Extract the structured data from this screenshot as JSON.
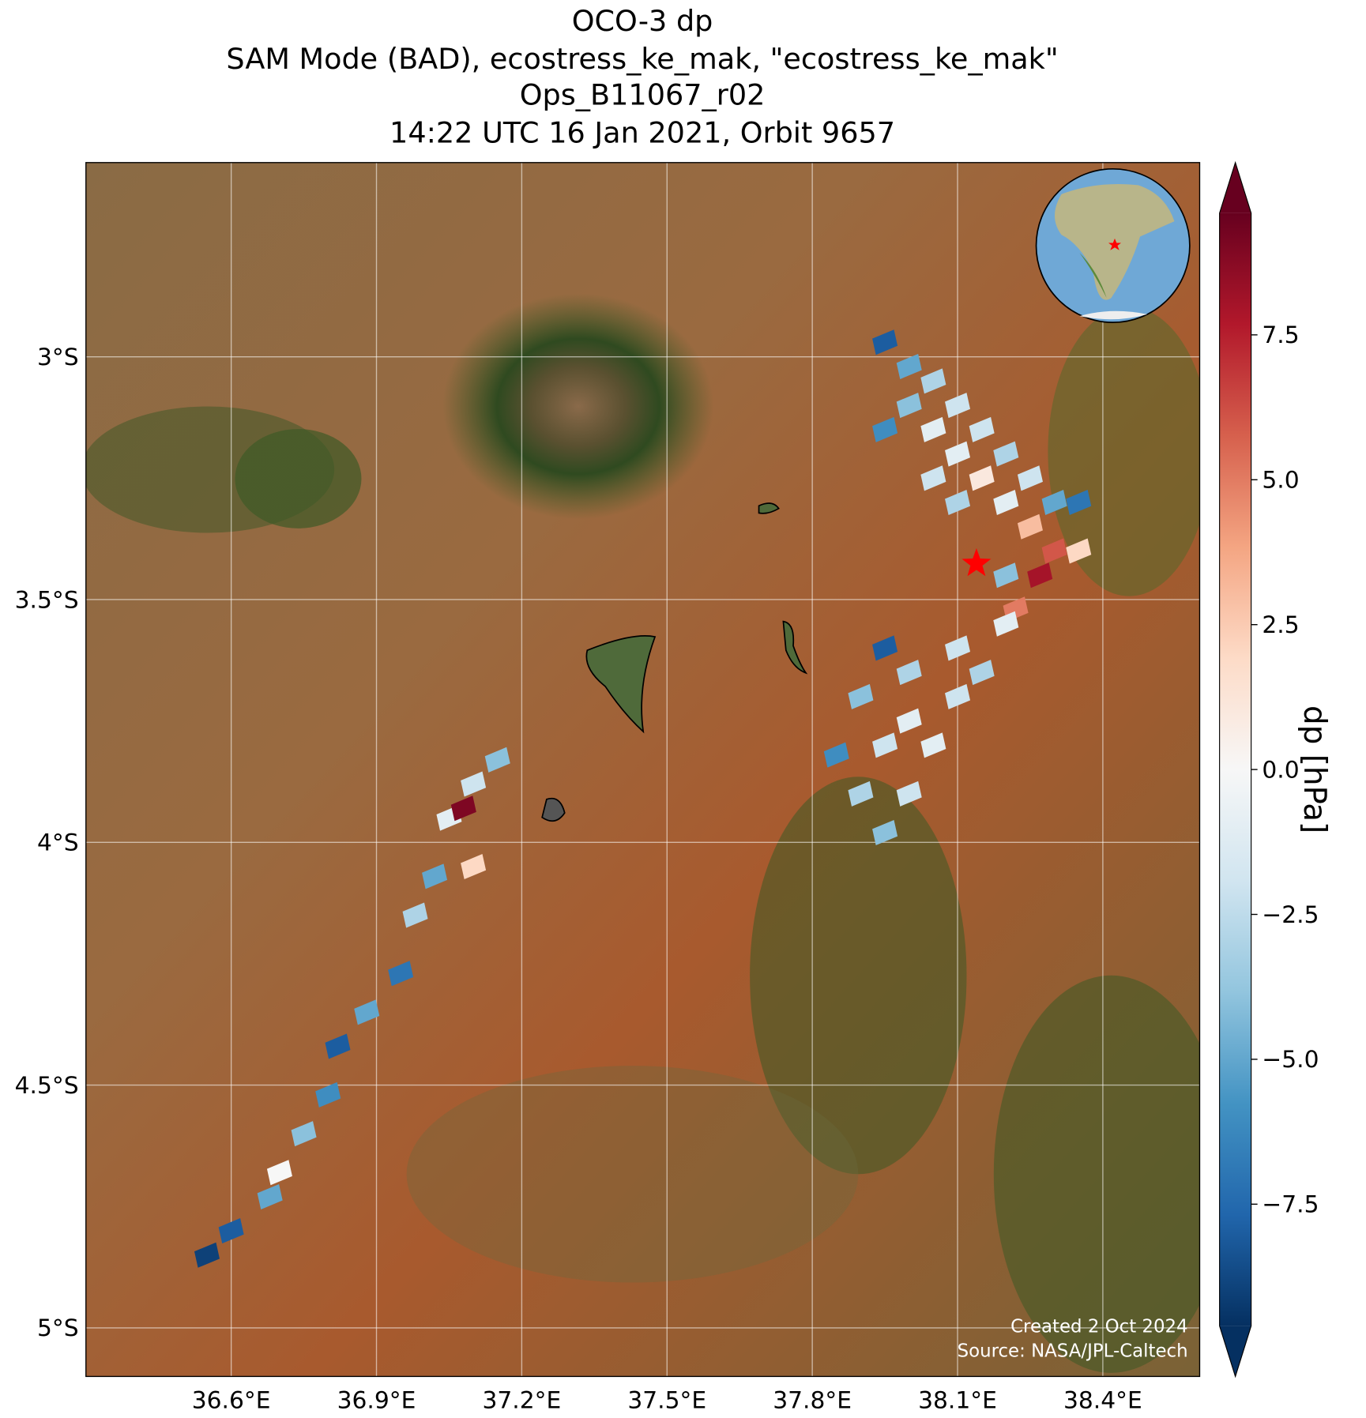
{
  "chart_data": {
    "type": "map",
    "title": [
      "OCO-3 dp",
      "SAM Mode (BAD), ecostress_ke_mak, \"ecostress_ke_mak\"",
      "Ops_B11067_r02",
      "14:22 UTC 16 Jan 2021, Orbit 9657"
    ],
    "xlim": [
      36.3,
      38.6
    ],
    "ylim": [
      -5.1,
      -2.6
    ],
    "xticks": [
      {
        "value": 36.6,
        "label": "36.6°E"
      },
      {
        "value": 36.9,
        "label": "36.9°E"
      },
      {
        "value": 37.2,
        "label": "37.2°E"
      },
      {
        "value": 37.5,
        "label": "37.5°E"
      },
      {
        "value": 37.8,
        "label": "37.8°E"
      },
      {
        "value": 38.1,
        "label": "38.1°E"
      },
      {
        "value": 38.4,
        "label": "38.4°E"
      }
    ],
    "yticks": [
      {
        "value": -3,
        "label": "3°S"
      },
      {
        "value": -3.5,
        "label": "3.5°S"
      },
      {
        "value": -4,
        "label": "4°S"
      },
      {
        "value": -4.5,
        "label": "4.5°S"
      },
      {
        "value": -5,
        "label": "5°S"
      }
    ],
    "grid": true,
    "colorbar_label": "dp [hPa]",
    "clim": [
      -9.6,
      9.6
    ],
    "cticks": [
      {
        "value": 7.5,
        "label": "7.5"
      },
      {
        "value": 5.0,
        "label": "5.0"
      },
      {
        "value": 2.5,
        "label": "2.5"
      },
      {
        "value": 0,
        "label": "0.0"
      },
      {
        "value": -2.5,
        "label": "−2.5"
      },
      {
        "value": -5.0,
        "label": "−5.0"
      },
      {
        "value": -7.5,
        "label": "−7.5"
      }
    ],
    "colormap": [
      "#053061",
      "#2166ac",
      "#4393c3",
      "#92c5de",
      "#d1e5f0",
      "#f7f7f7",
      "#fddbc7",
      "#f4a582",
      "#d6604d",
      "#b2182b",
      "#67001f"
    ],
    "target": {
      "lon": 38.139,
      "lat": -3.426,
      "color": "#ff0000"
    },
    "soundings": {
      "lon": [
        37.95,
        38.0,
        38.05,
        38.1,
        38.0,
        38.05,
        38.15,
        38.1,
        38.2,
        38.15,
        38.25,
        38.2,
        38.3,
        38.25,
        38.35,
        38.3,
        38.35,
        38.1,
        38.05,
        37.95,
        38.2,
        38.27,
        38.22,
        37.95,
        38.0,
        38.1,
        38.2,
        37.9,
        38.0,
        38.1,
        38.15,
        37.95,
        38.05,
        37.9,
        38.0,
        37.95,
        37.85,
        37.15,
        37.1,
        37.05,
        37.08,
        37.1,
        37.02,
        36.98,
        36.95,
        36.88,
        36.82,
        36.8,
        36.75,
        36.7,
        36.68,
        36.6,
        36.55
      ],
      "lat": [
        -2.97,
        -3.02,
        -3.05,
        -3.1,
        -3.1,
        -3.15,
        -3.15,
        -3.2,
        -3.2,
        -3.25,
        -3.25,
        -3.3,
        -3.3,
        -3.35,
        -3.3,
        -3.4,
        -3.4,
        -3.3,
        -3.25,
        -3.15,
        -3.45,
        -3.45,
        -3.52,
        -3.6,
        -3.65,
        -3.6,
        -3.55,
        -3.7,
        -3.75,
        -3.7,
        -3.65,
        -3.8,
        -3.8,
        -3.9,
        -3.9,
        -3.98,
        -3.82,
        -3.83,
        -3.88,
        -3.95,
        -3.93,
        -4.05,
        -4.07,
        -4.15,
        -4.27,
        -4.35,
        -4.42,
        -4.52,
        -4.6,
        -4.68,
        -4.73,
        -4.8,
        -4.85
      ],
      "dp": [
        -8,
        -5,
        -3,
        -2,
        -4,
        -1,
        -2,
        -1,
        -3,
        1,
        -2,
        -1,
        -5,
        3,
        -7,
        6,
        2,
        -3,
        -2,
        -6,
        -4,
        8,
        5,
        -8,
        -3,
        -2,
        -1,
        -4,
        -1,
        -2,
        -3,
        -2,
        -1,
        -3,
        -2,
        -4,
        -6,
        -4,
        -2,
        -1,
        9,
        2,
        -5,
        -3,
        -7,
        -5,
        -8,
        -6,
        -4,
        0,
        -5,
        -8,
        -9
      ]
    },
    "credits": [
      "Created 2 Oct 2024",
      "Source: NASA/JPL-Caltech"
    ]
  }
}
